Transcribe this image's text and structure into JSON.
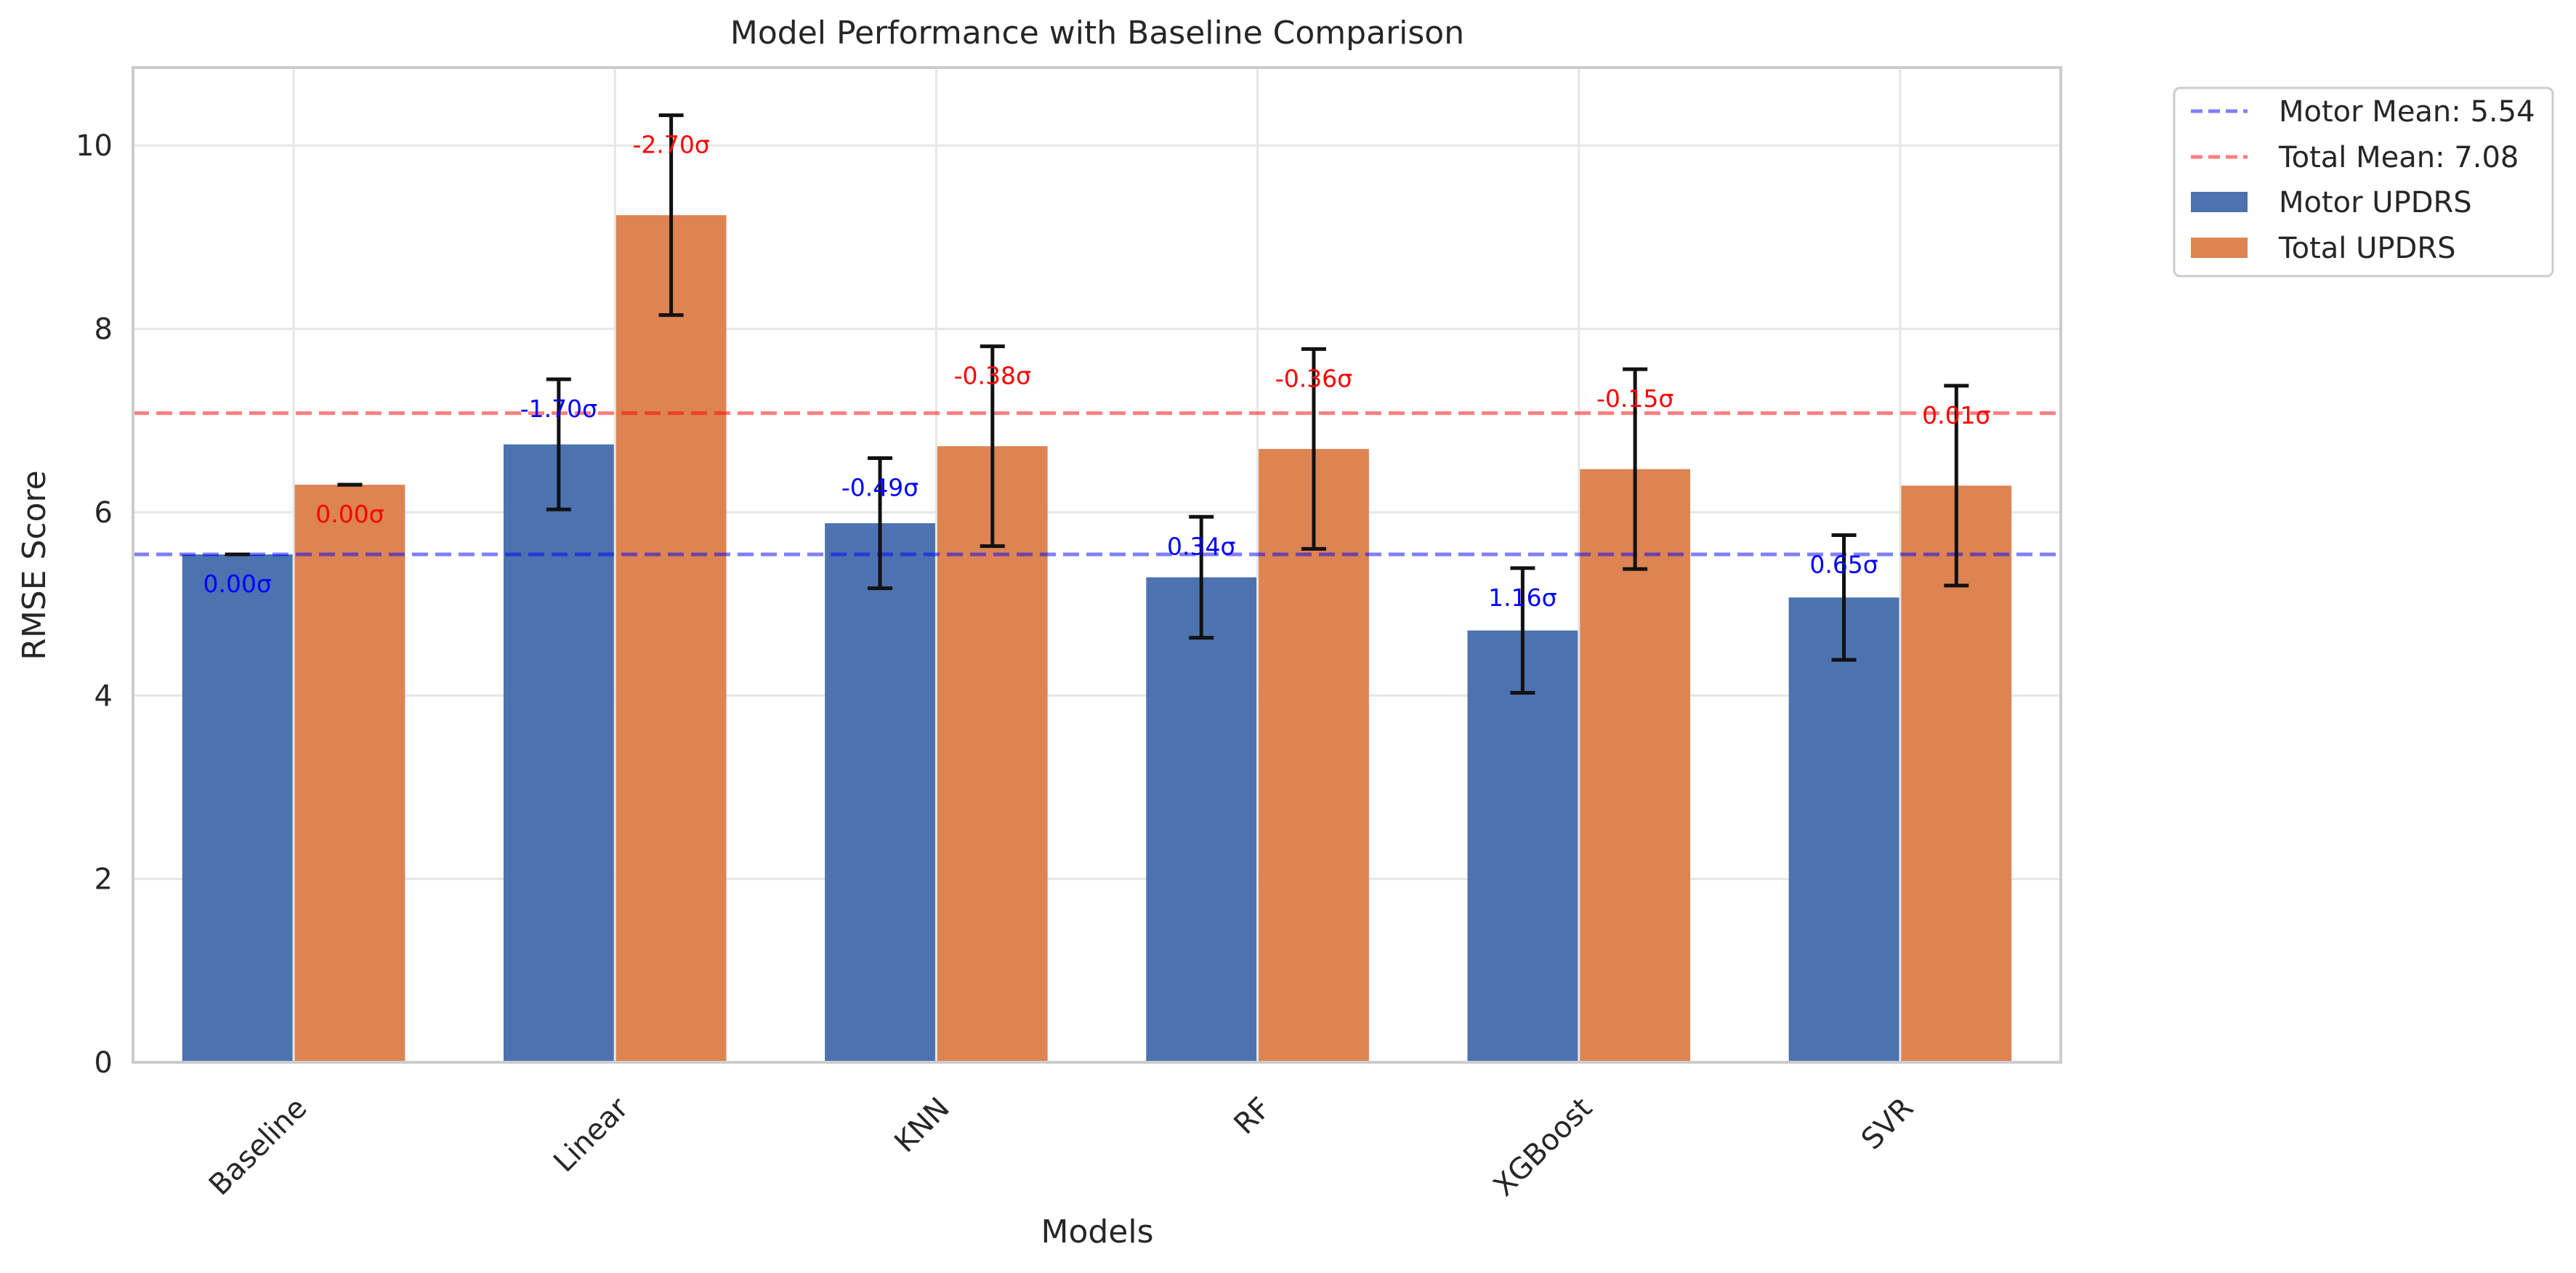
{
  "chart_data": {
    "type": "bar",
    "title": "Model Performance with Baseline Comparison",
    "xlabel": "Models",
    "ylabel": "RMSE Score",
    "ylim": [
      0,
      10.85
    ],
    "yticks": [
      0,
      2,
      4,
      6,
      8,
      10
    ],
    "grid": true,
    "legend_position": "outside-top-right",
    "categories": [
      "Baseline",
      "Linear",
      "KNN",
      "RF",
      "XGBoost",
      "SVR"
    ],
    "series": [
      {
        "name": "Motor UPDRS",
        "color": "#4c72b0",
        "label_color": "#0000ff",
        "values": [
          5.54,
          6.74,
          5.88,
          5.29,
          4.71,
          5.07
        ],
        "errors": [
          0.0,
          0.71,
          0.71,
          0.66,
          0.68,
          0.68
        ],
        "annotations": [
          "0.00σ",
          "-1.70σ",
          "-0.49σ",
          "0.34σ",
          "1.16σ",
          "0.65σ"
        ]
      },
      {
        "name": "Total UPDRS",
        "color": "#dd8452",
        "label_color": "#ff0000",
        "values": [
          6.3,
          9.24,
          6.72,
          6.69,
          6.47,
          6.29
        ],
        "errors": [
          0.0,
          1.09,
          1.09,
          1.09,
          1.09,
          1.09
        ],
        "annotations": [
          "0.00σ",
          "-2.70σ",
          "-0.38σ",
          "-0.36σ",
          "-0.15σ",
          "0.01σ"
        ]
      }
    ],
    "reference_lines": [
      {
        "label": "Motor Mean: 5.54",
        "value": 5.54,
        "color": "#0000ff"
      },
      {
        "label": "Total Mean: 7.08",
        "value": 7.08,
        "color": "#ff0000"
      }
    ]
  }
}
